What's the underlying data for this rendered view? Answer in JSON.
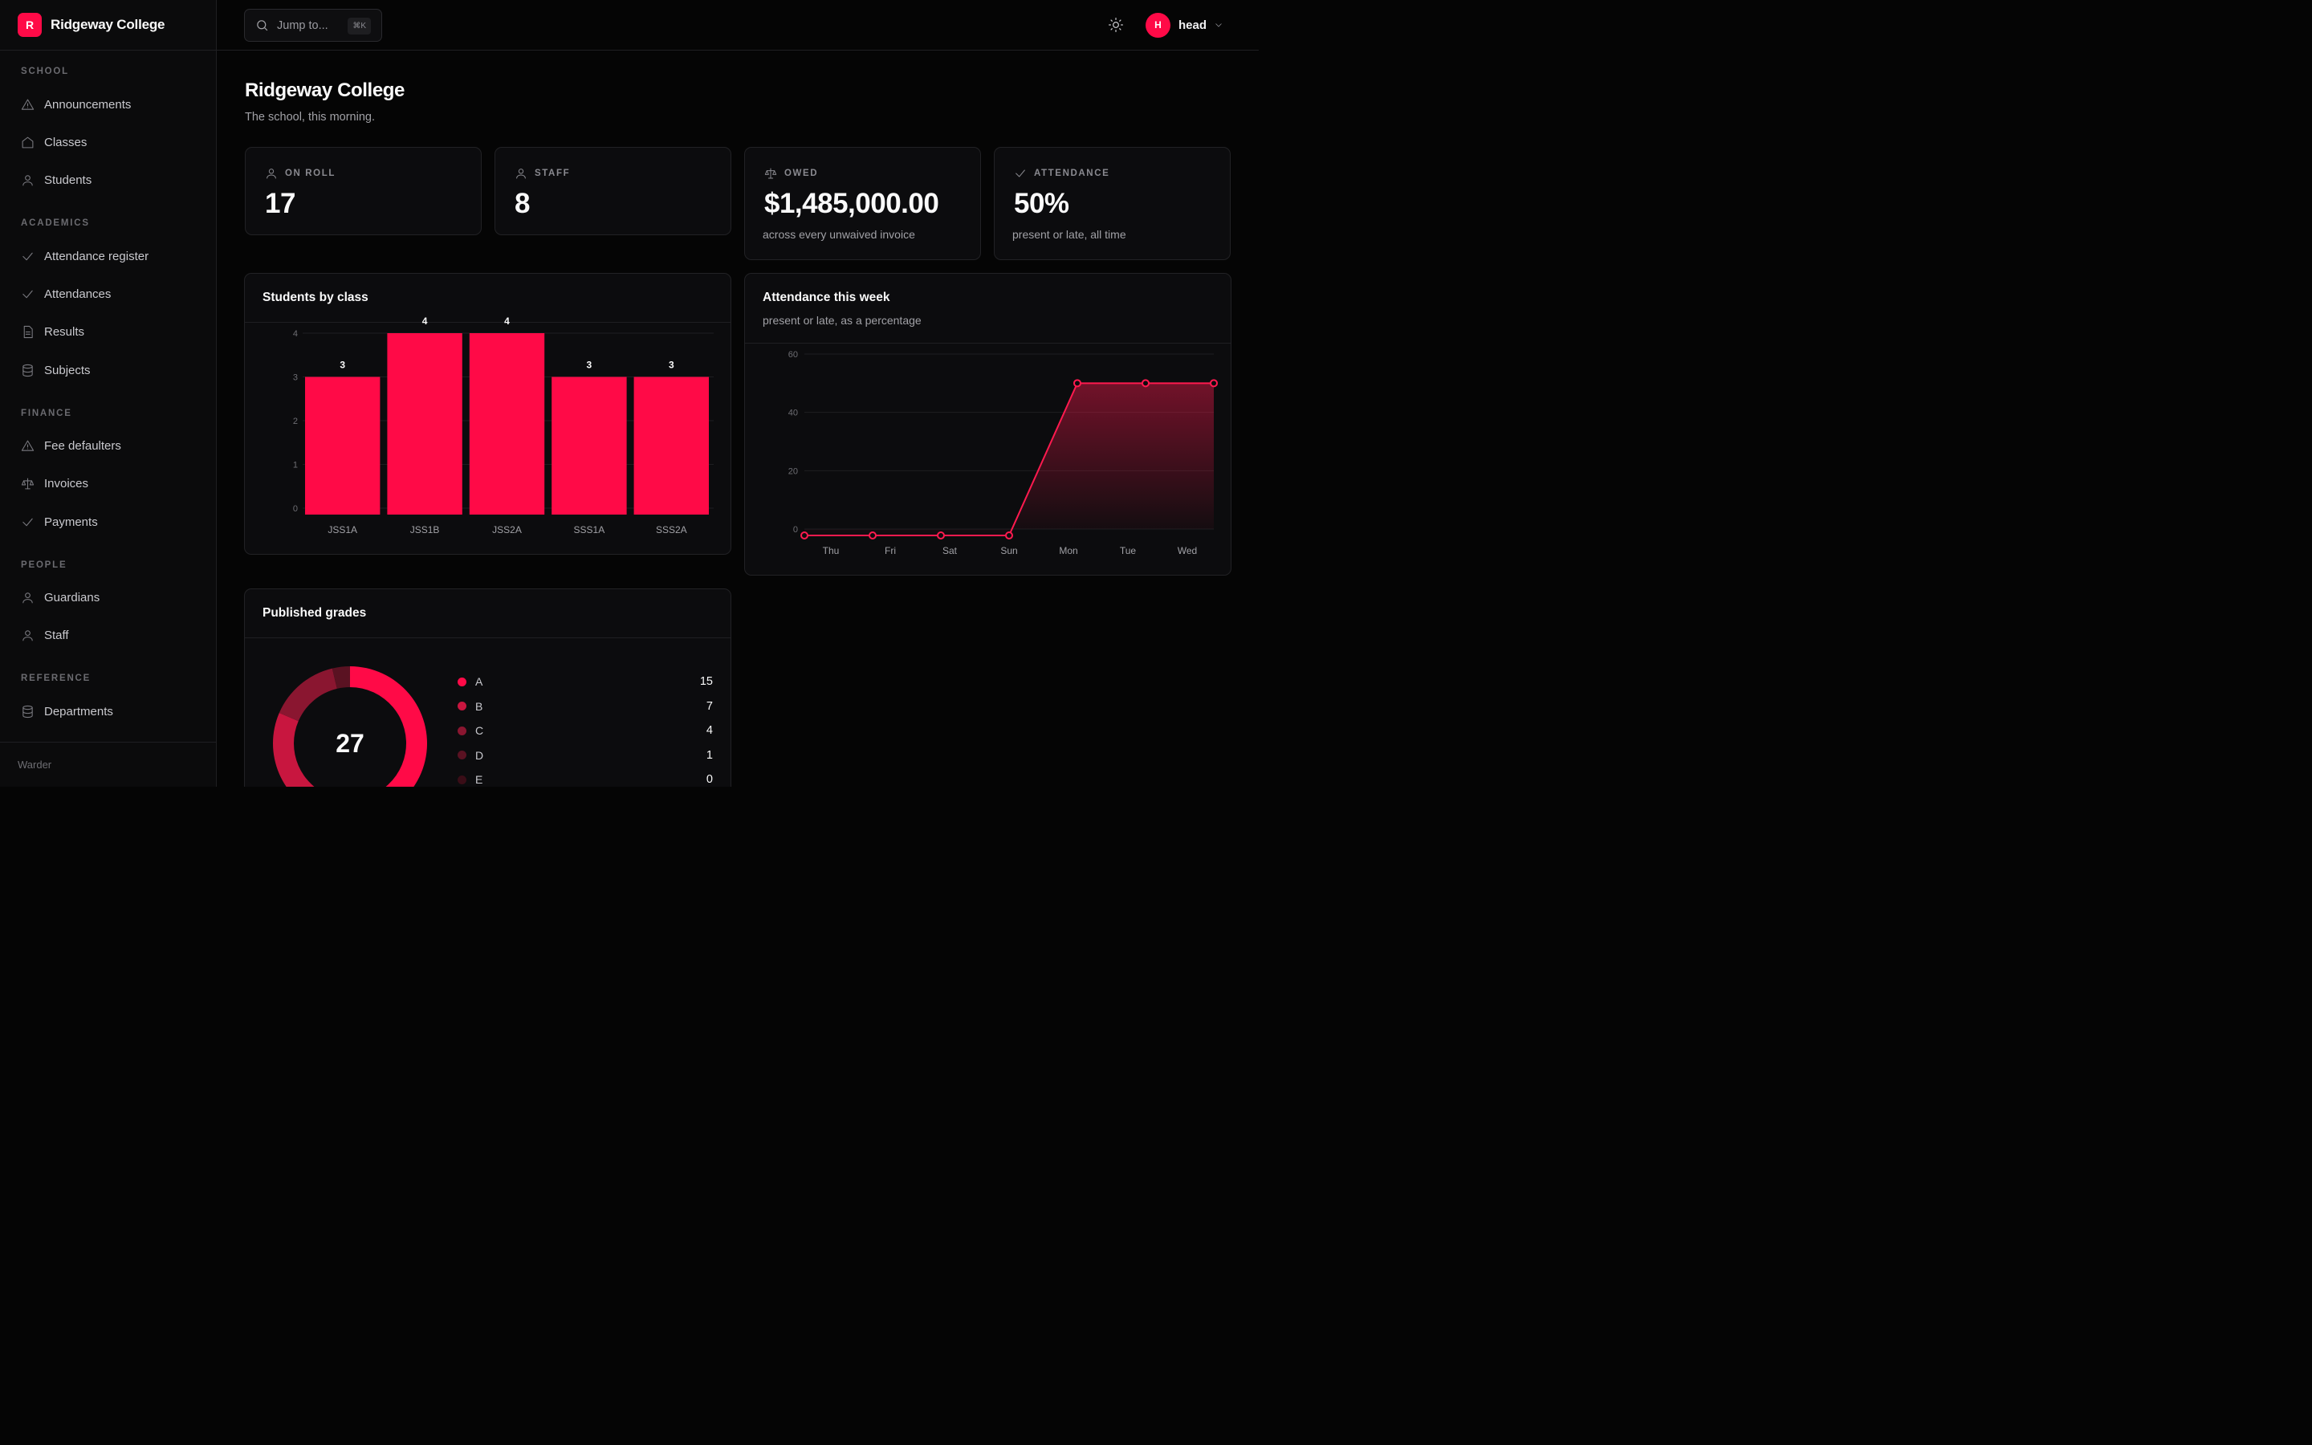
{
  "brand": {
    "logo_letter": "R",
    "name": "Ridgeway College",
    "accent": "#ff0a47"
  },
  "sidebar": {
    "sections": [
      {
        "title": "SCHOOL",
        "items": [
          {
            "label": "Announcements",
            "icon": "warning-icon"
          },
          {
            "label": "Classes",
            "icon": "home-icon"
          },
          {
            "label": "Students",
            "icon": "user-icon"
          }
        ]
      },
      {
        "title": "ACADEMICS",
        "items": [
          {
            "label": "Attendance register",
            "icon": "check-icon"
          },
          {
            "label": "Attendances",
            "icon": "check-icon"
          },
          {
            "label": "Results",
            "icon": "document-icon"
          },
          {
            "label": "Subjects",
            "icon": "database-icon"
          }
        ]
      },
      {
        "title": "FINANCE",
        "items": [
          {
            "label": "Fee defaulters",
            "icon": "warning-icon"
          },
          {
            "label": "Invoices",
            "icon": "scale-icon"
          },
          {
            "label": "Payments",
            "icon": "check-icon"
          }
        ]
      },
      {
        "title": "PEOPLE",
        "items": [
          {
            "label": "Guardians",
            "icon": "user-icon"
          },
          {
            "label": "Staff",
            "icon": "user-icon"
          }
        ]
      },
      {
        "title": "REFERENCE",
        "items": [
          {
            "label": "Departments",
            "icon": "database-icon"
          }
        ]
      }
    ],
    "footer": "Warder"
  },
  "topbar": {
    "search_placeholder": "Jump to...",
    "search_shortcut": "⌘K",
    "theme_icon": "sun-icon",
    "user": {
      "initial": "H",
      "name": "head"
    }
  },
  "page": {
    "title": "Ridgeway College",
    "subtitle": "The school, this morning."
  },
  "stats": [
    {
      "label": "ON ROLL",
      "icon": "user-icon",
      "value": "17",
      "note": ""
    },
    {
      "label": "STAFF",
      "icon": "user-icon",
      "value": "8",
      "note": ""
    },
    {
      "label": "OWED",
      "icon": "scale-icon",
      "value": "$1,485,000.00",
      "note": "across every unwaived invoice"
    },
    {
      "label": "ATTENDANCE",
      "icon": "check-icon",
      "value": "50%",
      "note": "present or late, all time"
    }
  ],
  "panels": {
    "students_by_class": {
      "title": "Students by class"
    },
    "attendance_week": {
      "title": "Attendance this week",
      "subtitle": "present or late, as a percentage"
    },
    "grades": {
      "title": "Published grades",
      "total": "27"
    }
  },
  "chart_data": [
    {
      "type": "bar",
      "title": "Students by class",
      "categories": [
        "JSS1A",
        "JSS1B",
        "JSS2A",
        "SSS1A",
        "SSS2A"
      ],
      "values": [
        3,
        4,
        4,
        3,
        3
      ],
      "ylim": [
        0,
        4
      ],
      "yticks": [
        0,
        1,
        2,
        3,
        4
      ],
      "color": "#ff0a47",
      "grid": true
    },
    {
      "type": "area",
      "title": "Attendance this week",
      "subtitle": "present or late, as a percentage",
      "categories": [
        "Thu",
        "Fri",
        "Sat",
        "Sun",
        "Mon",
        "Tue",
        "Wed"
      ],
      "values": [
        0,
        0,
        0,
        0,
        50,
        50,
        50
      ],
      "ylim": [
        0,
        60
      ],
      "yticks": [
        0,
        20,
        40,
        60
      ],
      "color": "#ff1a4f",
      "grid": true
    },
    {
      "type": "pie",
      "title": "Published grades",
      "total": 27,
      "series": [
        {
          "name": "A",
          "value": 15,
          "color": "#ff0a47"
        },
        {
          "name": "B",
          "value": 7,
          "color": "#c8163f"
        },
        {
          "name": "C",
          "value": 4,
          "color": "#8a1630"
        },
        {
          "name": "D",
          "value": 1,
          "color": "#5a1222"
        },
        {
          "name": "E",
          "value": 0,
          "color": "#3a0d17"
        }
      ]
    }
  ]
}
